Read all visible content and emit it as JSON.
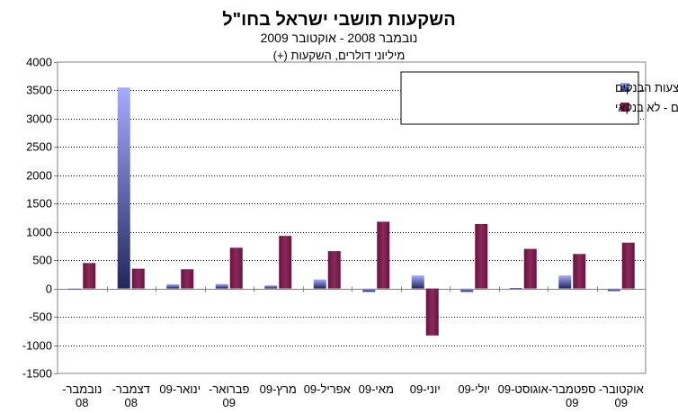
{
  "chart_data": {
    "type": "bar",
    "title": "השקעות תושבי ישראל בחו\"ל",
    "subtitle": "נובמבר 2008 - אוקטובר 2009",
    "unit_label": "מיליוני דולרים, השקעות (+)",
    "categories": [
      [
        "נובמבר-",
        "08"
      ],
      [
        "דצמבר-",
        "08"
      ],
      [
        "ינואר-09"
      ],
      [
        "פברואר-",
        "09"
      ],
      [
        "מרץ-09"
      ],
      [
        "אפריל-09"
      ],
      [
        "מאי-09"
      ],
      [
        "יוני-09"
      ],
      [
        "יולי-09"
      ],
      [
        "אוגוסט-09"
      ],
      [
        "ספטמבר-",
        "09"
      ],
      [
        "אוקטובר-",
        "09"
      ]
    ],
    "series": [
      {
        "name": "השקעות ישירות בחו\"ל באמצעות הבנקים",
        "values": [
          -15,
          3550,
          75,
          80,
          55,
          160,
          -60,
          230,
          -60,
          10,
          230,
          -45
        ]
      },
      {
        "name": "השקעות פיננסיות בני\"ע סחירים - לא בנקאי",
        "values": [
          450,
          350,
          340,
          720,
          930,
          660,
          1180,
          -830,
          1140,
          700,
          610,
          810
        ]
      }
    ],
    "ylim": [
      -1500,
      4000
    ],
    "yticks": [
      4000,
      3500,
      3000,
      2500,
      2000,
      1500,
      1000,
      500,
      0,
      -500,
      -1000,
      -1500
    ],
    "grid": true,
    "legend_position": "top-right",
    "colors": {
      "series1_light": "#9aa3ff",
      "series1_dark": "#2b2f7a",
      "series2": "#7a1a4a",
      "series2_light": "#a0406e",
      "grid": "#000000",
      "axis": "#808080",
      "plot_border": "#808080"
    }
  }
}
